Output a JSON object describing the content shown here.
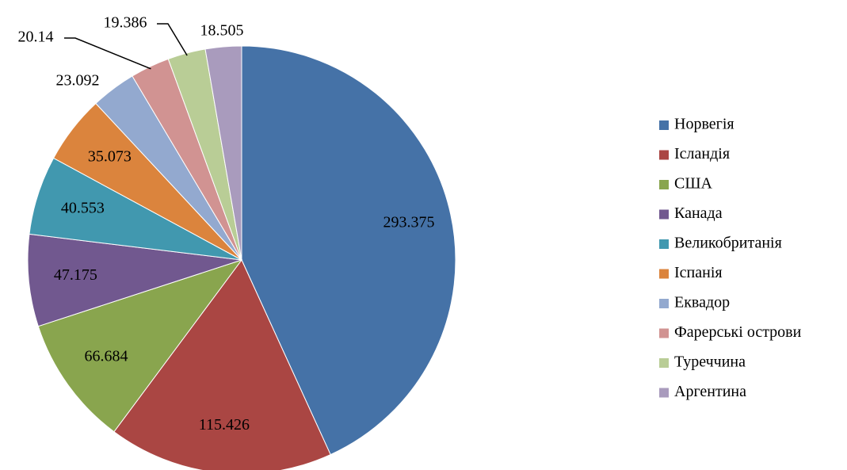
{
  "chart_data": {
    "type": "pie",
    "categories": [
      "Норвегія",
      "Ісландія",
      "США",
      "Канада",
      "Великобританія",
      "Іспанія",
      "Еквадор",
      "Фарерські острови",
      "Туреччина",
      "Аргентина"
    ],
    "values": [
      293.375,
      115.426,
      66.684,
      47.175,
      40.553,
      35.073,
      23.092,
      20.14,
      19.386,
      18.505
    ],
    "colors": [
      "#4572A7",
      "#AA4643",
      "#89A54E",
      "#71588F",
      "#4198AF",
      "#DB843D",
      "#93A9CF",
      "#D19392",
      "#B9CD96",
      "#A99BBD"
    ],
    "legend": "right"
  }
}
